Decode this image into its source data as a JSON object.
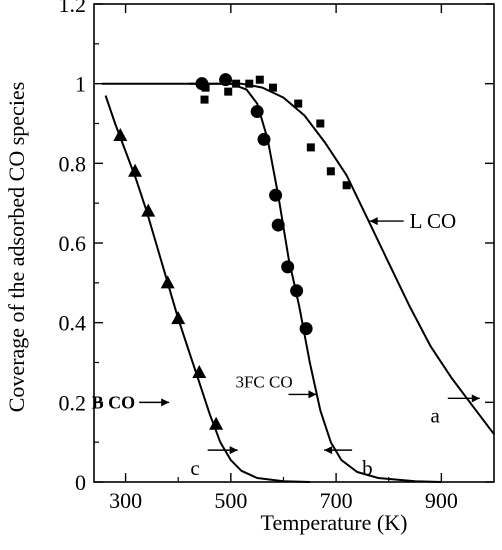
{
  "chart_data": {
    "type": "line",
    "xlabel": "Temperature (K)",
    "ylabel": "Coverage of the adsorbed CO species",
    "xlim": [
      240,
      1000
    ],
    "ylim": [
      0,
      1.2
    ],
    "grid": false,
    "x_ticks": [
      {
        "value": 300,
        "label": "300"
      },
      {
        "value": 500,
        "label": "500"
      },
      {
        "value": 700,
        "label": "700"
      },
      {
        "value": 900,
        "label": "900"
      }
    ],
    "y_ticks": [
      {
        "value": 0,
        "label": "0"
      },
      {
        "value": 0.2,
        "label": "0.2"
      },
      {
        "value": 0.4,
        "label": "0.4"
      },
      {
        "value": 0.6,
        "label": "0.6"
      },
      {
        "value": 0.8,
        "label": "0.8"
      },
      {
        "value": 1,
        "label": "1"
      },
      {
        "value": 1.2,
        "label": "1.2"
      }
    ],
    "series": [
      {
        "name": "L CO",
        "tag": "a",
        "marker": "square",
        "color": "#000000",
        "points": [
          {
            "x": 450,
            "y": 0.96
          },
          {
            "x": 452,
            "y": 0.99
          },
          {
            "x": 495,
            "y": 0.98
          },
          {
            "x": 510,
            "y": 1.0
          },
          {
            "x": 535,
            "y": 1.0
          },
          {
            "x": 555,
            "y": 1.01
          },
          {
            "x": 580,
            "y": 0.99
          },
          {
            "x": 628,
            "y": 0.95
          },
          {
            "x": 670,
            "y": 0.9
          },
          {
            "x": 652,
            "y": 0.84
          },
          {
            "x": 690,
            "y": 0.78
          },
          {
            "x": 720,
            "y": 0.745
          }
        ],
        "curve": [
          {
            "x": 255,
            "y": 1.0
          },
          {
            "x": 450,
            "y": 1.0
          },
          {
            "x": 520,
            "y": 1.0
          },
          {
            "x": 560,
            "y": 0.99
          },
          {
            "x": 600,
            "y": 0.965
          },
          {
            "x": 640,
            "y": 0.92
          },
          {
            "x": 680,
            "y": 0.85
          },
          {
            "x": 720,
            "y": 0.77
          },
          {
            "x": 760,
            "y": 0.66
          },
          {
            "x": 800,
            "y": 0.55
          },
          {
            "x": 840,
            "y": 0.44
          },
          {
            "x": 880,
            "y": 0.34
          },
          {
            "x": 920,
            "y": 0.26
          },
          {
            "x": 960,
            "y": 0.19
          },
          {
            "x": 1000,
            "y": 0.12
          }
        ]
      },
      {
        "name": "3FC CO",
        "tag": "b",
        "marker": "circle",
        "color": "#000000",
        "points": [
          {
            "x": 445,
            "y": 1.0
          },
          {
            "x": 490,
            "y": 1.01
          },
          {
            "x": 550,
            "y": 0.93
          },
          {
            "x": 563,
            "y": 0.86
          },
          {
            "x": 585,
            "y": 0.72
          },
          {
            "x": 590,
            "y": 0.645
          },
          {
            "x": 608,
            "y": 0.54
          },
          {
            "x": 625,
            "y": 0.48
          },
          {
            "x": 643,
            "y": 0.385
          }
        ],
        "curve": [
          {
            "x": 420,
            "y": 1.0
          },
          {
            "x": 500,
            "y": 1.0
          },
          {
            "x": 530,
            "y": 0.985
          },
          {
            "x": 550,
            "y": 0.95
          },
          {
            "x": 570,
            "y": 0.86
          },
          {
            "x": 590,
            "y": 0.72
          },
          {
            "x": 610,
            "y": 0.56
          },
          {
            "x": 630,
            "y": 0.44
          },
          {
            "x": 650,
            "y": 0.3
          },
          {
            "x": 670,
            "y": 0.18
          },
          {
            "x": 690,
            "y": 0.1
          },
          {
            "x": 710,
            "y": 0.055
          },
          {
            "x": 740,
            "y": 0.025
          },
          {
            "x": 780,
            "y": 0.01
          },
          {
            "x": 850,
            "y": 0.002
          },
          {
            "x": 900,
            "y": 0.0
          }
        ]
      },
      {
        "name": "B CO",
        "tag": "c",
        "marker": "triangle",
        "color": "#000000",
        "points": [
          {
            "x": 290,
            "y": 0.87
          },
          {
            "x": 318,
            "y": 0.78
          },
          {
            "x": 343,
            "y": 0.68
          },
          {
            "x": 380,
            "y": 0.5
          },
          {
            "x": 400,
            "y": 0.41
          },
          {
            "x": 440,
            "y": 0.275
          },
          {
            "x": 472,
            "y": 0.145
          }
        ],
        "curve": [
          {
            "x": 262,
            "y": 0.97
          },
          {
            "x": 280,
            "y": 0.9
          },
          {
            "x": 300,
            "y": 0.83
          },
          {
            "x": 320,
            "y": 0.76
          },
          {
            "x": 340,
            "y": 0.68
          },
          {
            "x": 360,
            "y": 0.59
          },
          {
            "x": 380,
            "y": 0.5
          },
          {
            "x": 400,
            "y": 0.41
          },
          {
            "x": 420,
            "y": 0.33
          },
          {
            "x": 440,
            "y": 0.25
          },
          {
            "x": 460,
            "y": 0.17
          },
          {
            "x": 480,
            "y": 0.1
          },
          {
            "x": 500,
            "y": 0.055
          },
          {
            "x": 520,
            "y": 0.028
          },
          {
            "x": 550,
            "y": 0.01
          },
          {
            "x": 600,
            "y": 0.002
          },
          {
            "x": 650,
            "y": 0.0
          }
        ]
      }
    ],
    "annotations": [
      {
        "text": "L CO",
        "x": 760,
        "y": 0.66,
        "style": "normal"
      },
      {
        "text": "3FC CO",
        "x": 562,
        "y": 0.245,
        "style": "small"
      },
      {
        "text": "B CO",
        "x": 417,
        "y": 0.225,
        "style": "bold"
      },
      {
        "text": "a",
        "x": 935,
        "y": 0.21,
        "style": "normal"
      },
      {
        "text": "b",
        "x": 700,
        "y": 0.08,
        "style": "normal"
      },
      {
        "text": "c",
        "x": 475,
        "y": 0.08,
        "style": "normal"
      }
    ]
  }
}
